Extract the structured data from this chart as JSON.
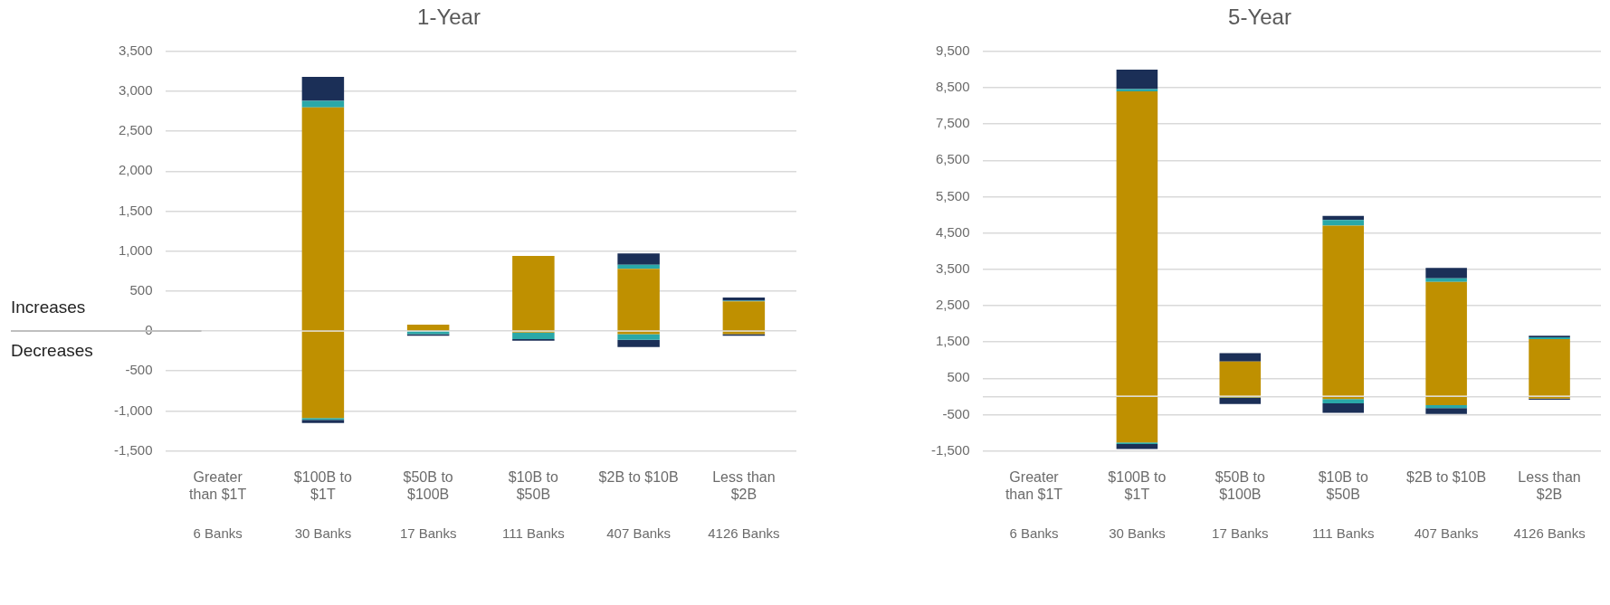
{
  "chart_data": [
    {
      "type": "bar",
      "title": "1-Year",
      "stacked": true,
      "grid": "y",
      "categories": [
        "Greater than $1T",
        "$100B to $1T",
        "$50B to $100B",
        "$10B to $50B",
        "$2B to $10B",
        "Less than $2B"
      ],
      "series": [
        {
          "color": "#bf9000",
          "values": [
            0,
            2800,
            80,
            940,
            780,
            370
          ]
        },
        {
          "color": "#2aa8a8",
          "values": [
            0,
            80,
            0,
            0,
            50,
            10
          ]
        },
        {
          "color": "#1b2f57",
          "values": [
            0,
            300,
            0,
            0,
            140,
            40
          ]
        },
        {
          "color": "#bf9000",
          "values": [
            0,
            -1090,
            null,
            -20,
            -40,
            -40
          ]
        },
        {
          "color": "#2aa8a8",
          "values": [
            0,
            -20,
            -40,
            -80,
            -70,
            0
          ]
        },
        {
          "color": "#1b2f57",
          "values": [
            0,
            -40,
            -20,
            -20,
            -90,
            -20
          ]
        }
      ],
      "ylim": [
        -1500,
        3500
      ],
      "yticks": [
        {
          "value": -1500,
          "label": "-1,500"
        },
        {
          "value": -1000,
          "label": "-1,000"
        },
        -500,
        0,
        500,
        {
          "value": 1000,
          "label": "1,000"
        },
        {
          "value": 1500,
          "label": "1,500"
        },
        {
          "value": 2000,
          "label": "2,000"
        },
        {
          "value": 2500,
          "label": "2,500"
        },
        {
          "value": 3000,
          "label": "3,000"
        },
        {
          "value": 3500,
          "label": "3,500"
        }
      ],
      "annotations": [
        "Increases",
        "Decreases",
        "6 Banks",
        "30 Banks",
        "17 Banks",
        "111 Banks",
        "407 Banks",
        "4126 Banks"
      ]
    },
    {
      "type": "bar",
      "title": "5-Year",
      "stacked": true,
      "grid": "y",
      "categories": [
        "Greater than $1T",
        "$100B to $1T",
        "$50B to $100B",
        "$10B to $50B",
        "$2B to $10B",
        "Less than $2B"
      ],
      "series": [
        {
          "color": "#bf9000",
          "values": [
            0,
            8400,
            960,
            4700,
            3150,
            1580
          ]
        },
        {
          "color": "#2aa8a8",
          "values": [
            0,
            60,
            0,
            160,
            100,
            50
          ]
        },
        {
          "color": "#1b2f57",
          "values": [
            0,
            540,
            230,
            110,
            290,
            40
          ]
        },
        {
          "color": "#bf9000",
          "values": [
            0,
            -1270,
            -30,
            -70,
            -240,
            -60
          ]
        },
        {
          "color": "#2aa8a8",
          "values": [
            0,
            -40,
            -10,
            -120,
            -80,
            0
          ]
        },
        {
          "color": "#1b2f57",
          "values": [
            0,
            -140,
            -170,
            -260,
            -160,
            -30
          ]
        }
      ],
      "ylim": [
        -1500,
        9500
      ],
      "yticks": [
        {
          "value": -1500,
          "label": "-1,500"
        },
        -500,
        {
          "value": 0,
          "label": null
        },
        500,
        {
          "value": 1500,
          "label": "1,500"
        },
        {
          "value": 2500,
          "label": "2,500"
        },
        {
          "value": 3500,
          "label": "3,500"
        },
        {
          "value": 4500,
          "label": "4,500"
        },
        {
          "value": 5500,
          "label": "5,500"
        },
        {
          "value": 6500,
          "label": "6,500"
        },
        {
          "value": 7500,
          "label": "7,500"
        },
        {
          "value": 8500,
          "label": "8,500"
        },
        {
          "value": 9500,
          "label": "9,500"
        }
      ],
      "annotations": [
        "6 Banks",
        "30 Banks",
        "17 Banks",
        "111 Banks",
        "407 Banks",
        "4126 Banks"
      ]
    }
  ]
}
